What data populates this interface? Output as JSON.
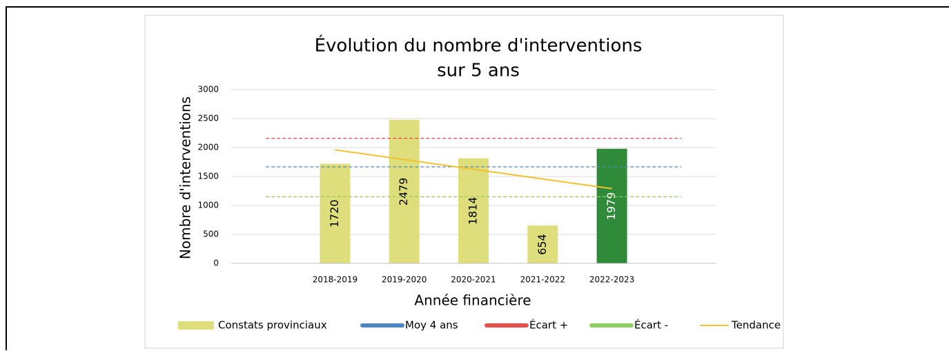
{
  "chart_data": {
    "type": "bar",
    "title": [
      "Évolution du nombre d'interventions",
      "sur 5 ans"
    ],
    "x_label": "Année financière",
    "y_label": "Nombre d'interventions",
    "categories": [
      null,
      "2018-2019",
      "2019-2020",
      "2020-2021",
      "2021-2022",
      "2022-2023",
      null
    ],
    "ylim": [
      0,
      3000
    ],
    "yticks": [
      0,
      500,
      1000,
      1500,
      2000,
      2500,
      3000
    ],
    "grid": true,
    "legend": "bottom",
    "series": [
      {
        "name": "Constats provinciaux",
        "style": "bar",
        "color": "#dede7c",
        "colors": [
          null,
          "#dede7c",
          "#dede7c",
          "#dede7c",
          "#dede7c",
          "#2f8a3a",
          null
        ],
        "label_colors": [
          null,
          "#000000",
          "#000000",
          "#000000",
          "#000000",
          "#ffffff",
          null
        ],
        "values": [
          null,
          1720,
          2479,
          1814,
          654,
          1979,
          null
        ]
      },
      {
        "name": "Moy 4 ans",
        "style": "dashed",
        "color": "#4a86c8",
        "values": [
          1667,
          1667,
          1667,
          1667,
          1667,
          1667,
          1667
        ]
      },
      {
        "name": "Écart +",
        "style": "dashed",
        "color": "#e85050",
        "values": [
          2160,
          2160,
          2160,
          2160,
          2160,
          2160,
          2160
        ]
      },
      {
        "name": "Écart -",
        "style": "dashed",
        "color": "#90d060",
        "values": [
          1150,
          1150,
          1150,
          1150,
          1150,
          1150,
          1150
        ]
      },
      {
        "name": "Tendance",
        "style": "line",
        "color": "#f2c12e",
        "values": [
          null,
          1960,
          1792,
          1625,
          1457,
          1290,
          null
        ]
      }
    ]
  }
}
